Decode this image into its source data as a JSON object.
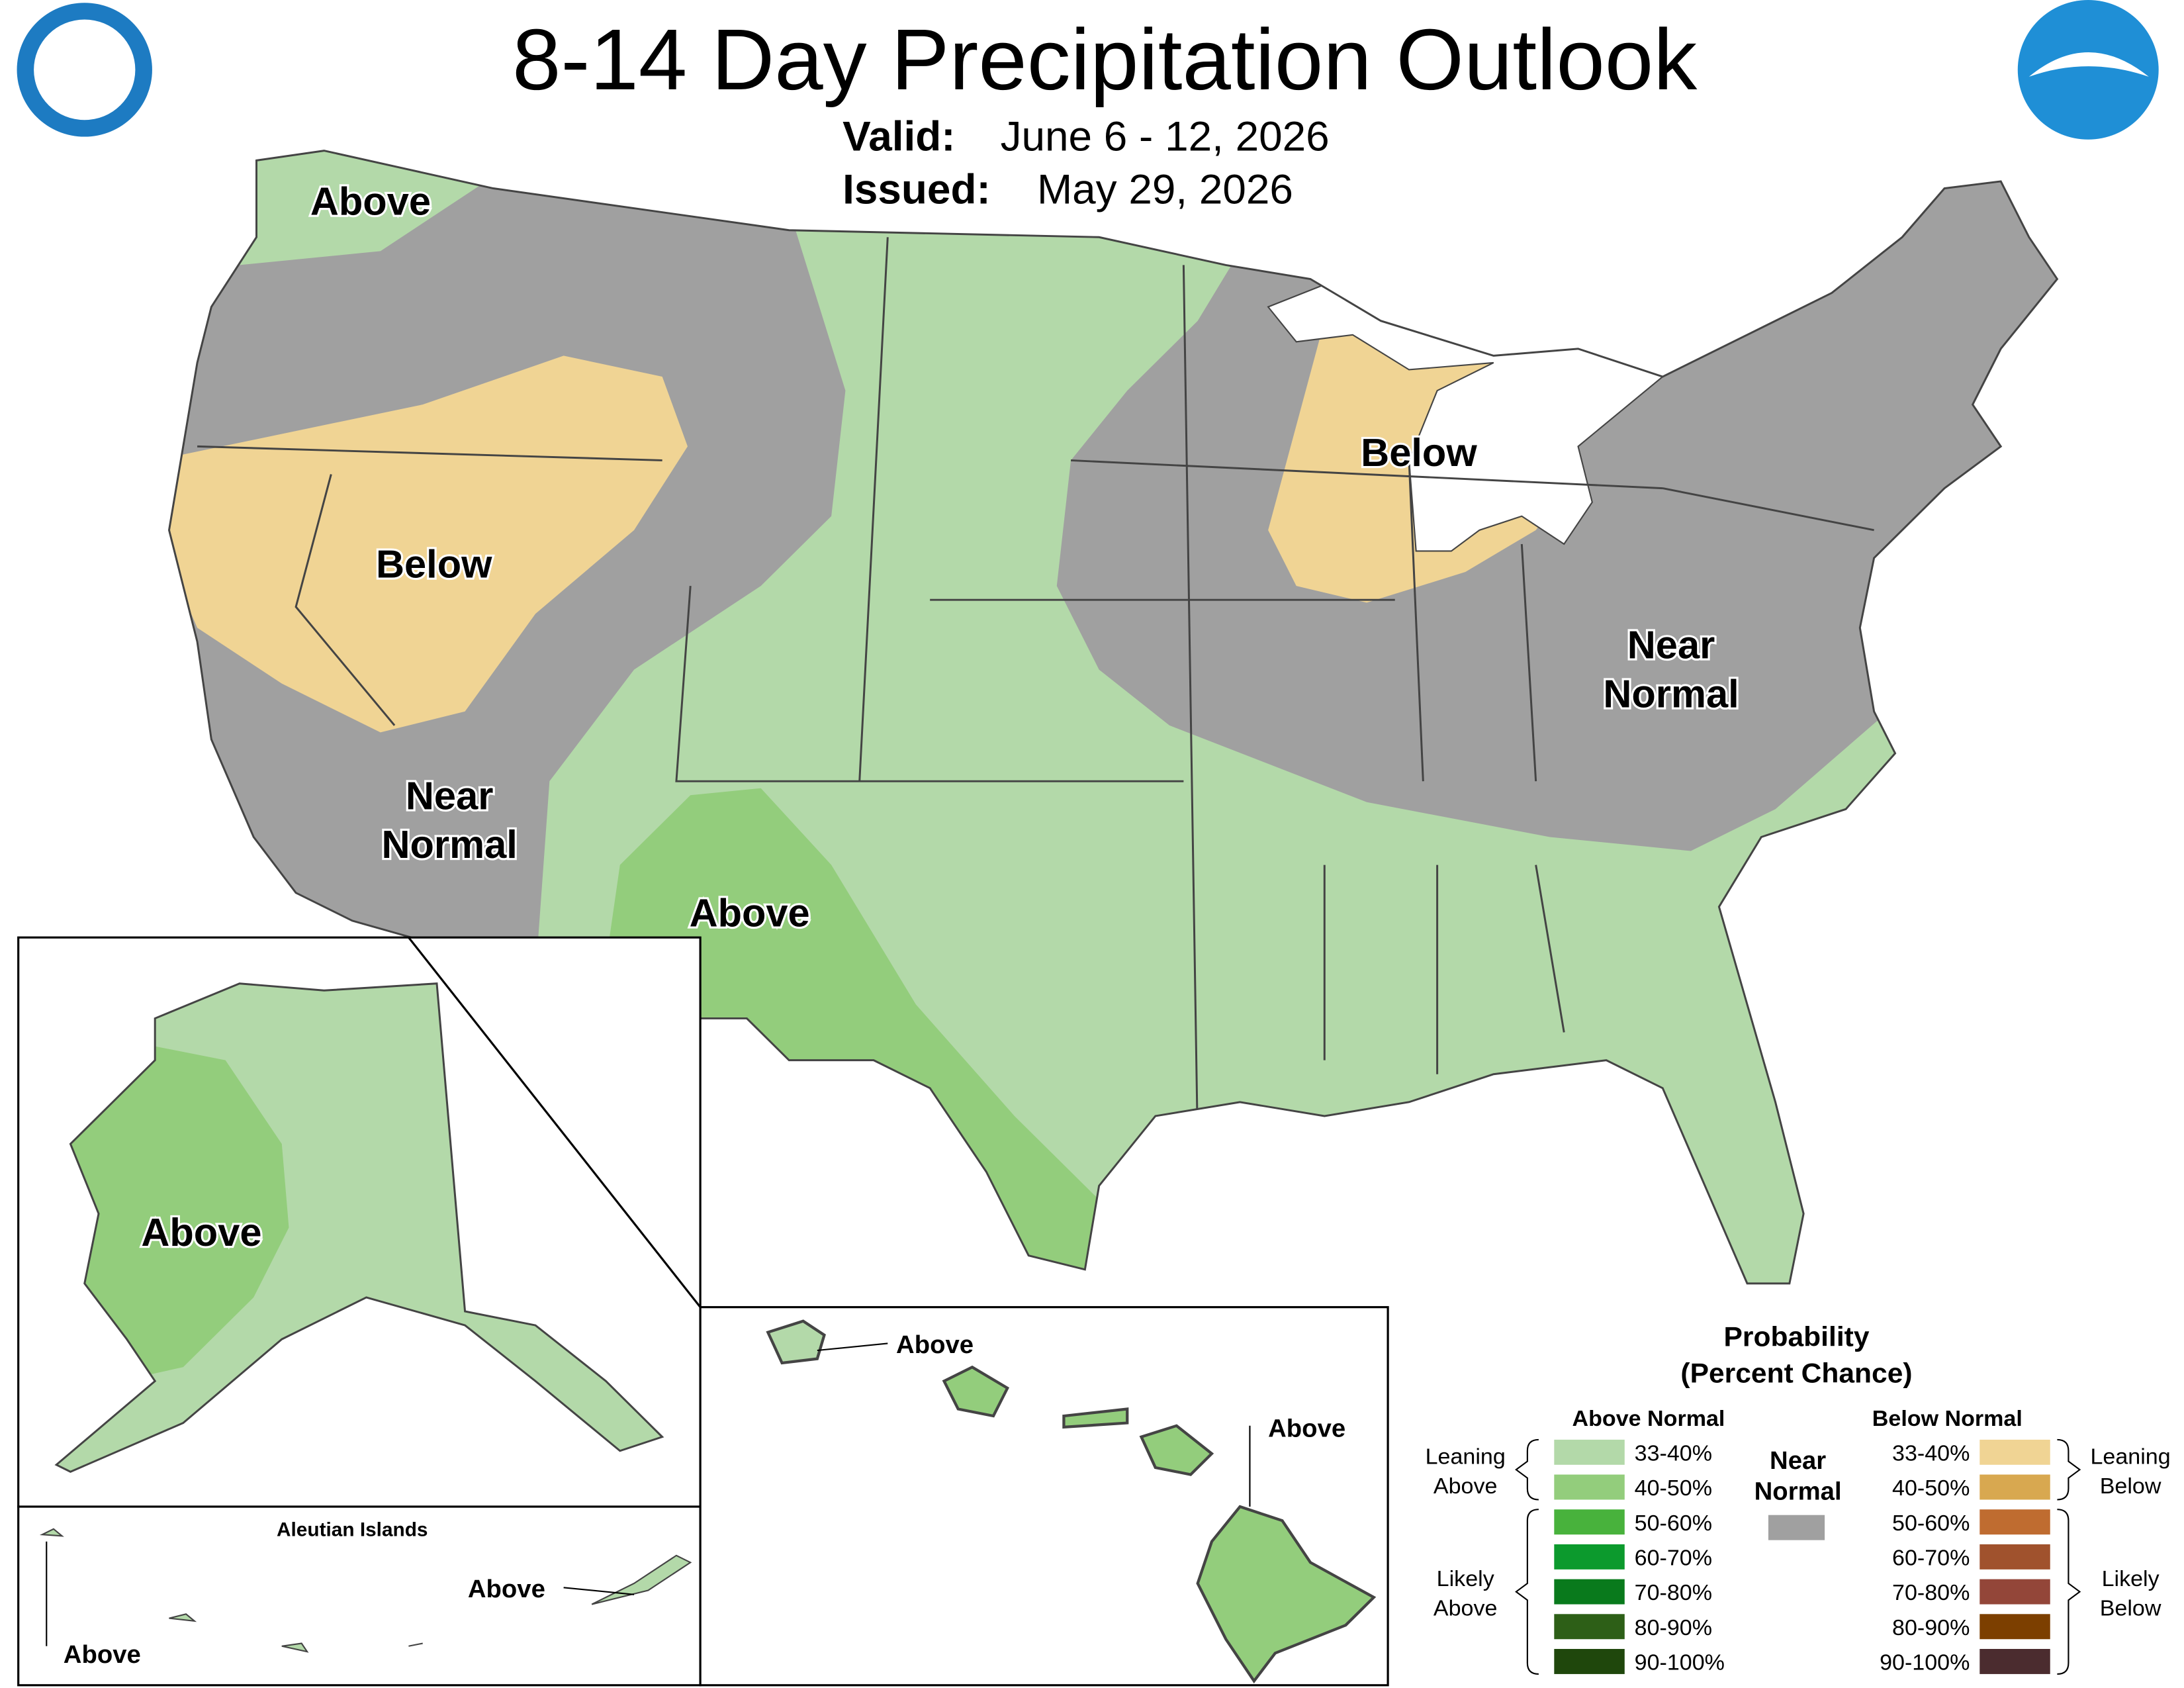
{
  "header": {
    "title": "8-14 Day Precipitation Outlook",
    "valid_label": "Valid:",
    "valid": "June 6 - 12, 2026",
    "issued_label": "Issued:",
    "issued": "May 29, 2026"
  },
  "conus_labels": [
    {
      "lines": [
        "Above"
      ]
    },
    {
      "lines": [
        "Below"
      ]
    },
    {
      "lines": [
        "Below"
      ]
    },
    {
      "lines": [
        "Near",
        "Normal"
      ]
    },
    {
      "lines": [
        "Near",
        "Normal"
      ]
    },
    {
      "lines": [
        "Above"
      ]
    }
  ],
  "alaska": {
    "label": "Above"
  },
  "aleutians": {
    "title": "Aleutian Islands",
    "labels": [
      "Above",
      "Above"
    ]
  },
  "hawaii": {
    "labels": [
      "Above",
      "Above"
    ]
  },
  "legend": {
    "title": "Probability",
    "subtitle": "(Percent Chance)",
    "above_header": "Above Normal",
    "below_header": "Below Normal",
    "near": {
      "lines": [
        "Near",
        "Normal"
      ],
      "color": "#a0a0a0"
    },
    "above": [
      {
        "label": "33-40%",
        "color": "#b3d9a9"
      },
      {
        "label": "40-50%",
        "color": "#93cd7c"
      },
      {
        "label": "50-60%",
        "color": "#48b23c"
      },
      {
        "label": "60-70%",
        "color": "#0c9a2d"
      },
      {
        "label": "70-80%",
        "color": "#097a1c"
      },
      {
        "label": "80-90%",
        "color": "#2d5f17"
      },
      {
        "label": "90-100%",
        "color": "#1f470c"
      }
    ],
    "below": [
      {
        "label": "33-40%",
        "color": "#f0d494"
      },
      {
        "label": "40-50%",
        "color": "#d8a850"
      },
      {
        "label": "50-60%",
        "color": "#bf6c30"
      },
      {
        "label": "60-70%",
        "color": "#a0522d"
      },
      {
        "label": "70-80%",
        "color": "#934639"
      },
      {
        "label": "80-90%",
        "color": "#7c3f00"
      },
      {
        "label": "90-100%",
        "color": "#4b2c2f"
      }
    ],
    "above_groups": [
      {
        "lines": [
          "Leaning",
          "Above"
        ]
      },
      {
        "lines": [
          "Likely",
          "Above"
        ]
      }
    ],
    "below_groups": [
      {
        "lines": [
          "Leaning",
          "Below"
        ]
      },
      {
        "lines": [
          "Likely",
          "Below"
        ]
      }
    ]
  }
}
